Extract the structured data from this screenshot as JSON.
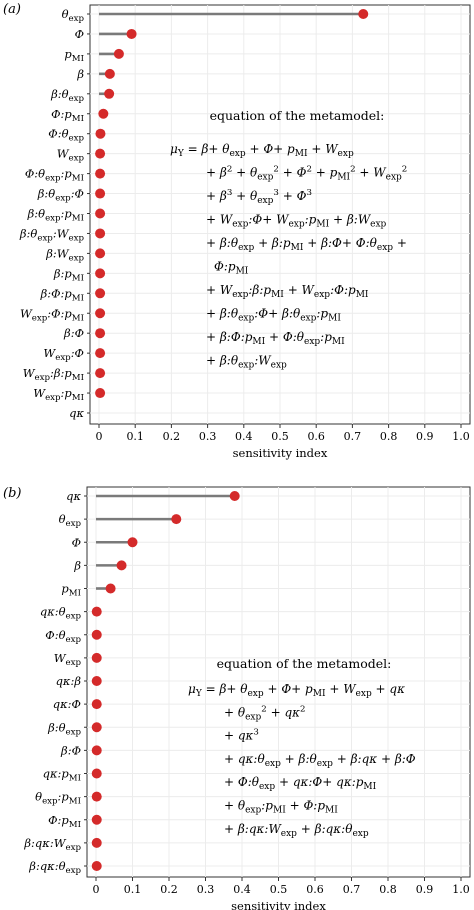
{
  "chart_data": [
    {
      "type": "lollipop",
      "panel_label": "(a)",
      "xlabel": "sensitivity index",
      "xlim": [
        0,
        1.0
      ],
      "xticks": [
        "0",
        "0.1",
        "0.2",
        "0.3",
        "0.4",
        "0.5",
        "0.6",
        "0.7",
        "0.8",
        "0.9",
        "1.0"
      ],
      "grid": true,
      "colors": {
        "stem": "#7a7a7a",
        "point": "#d42a2a"
      },
      "categories": [
        "θexp",
        "Φ",
        "pMI",
        "β",
        "β:θexp",
        "Φ:pMI",
        "Φ:θexp",
        "Wexp",
        "Φ:θexp:pMI",
        "β:θexp:Φ",
        "β:θexp:pMI",
        "β:θexp:Wexp",
        "β:Wexp",
        "β:pMI",
        "β:Φ:pMI",
        "Wexp:Φ:pMI",
        "β:Φ",
        "Wexp:Φ",
        "Wexp:β:pMI",
        "Wexp:pMI",
        "qκ"
      ],
      "values": [
        0.73,
        0.09,
        0.055,
        0.03,
        0.028,
        0.012,
        0.004,
        0.003,
        0.003,
        0.003,
        0.003,
        0.003,
        0.003,
        0.003,
        0.003,
        0.003,
        0.003,
        0.003,
        0.003,
        0.003,
        null
      ],
      "annotation": {
        "title": "equation of the metamodel:",
        "lines": [
          "μY = β+ θexp + Φ+ pMI + Wexp",
          "+ β2 + θexp2 + Φ2 + pMI2 + Wexp2",
          "+ β3 + θexp3 + Φ3",
          "+ Wexp:Φ+ Wexp:pMI + β:Wexp",
          "+ β:θexp + β:pMI + β:Φ+ Φ:θexp +",
          "Φ:pMI",
          "+ Wexp:β:pMI + Wexp:Φ:pMI",
          "+ β:θexp:Φ+ β:θexp:pMI",
          "+ β:Φ:pMI + Φ:θexp:pMI",
          "+ β:θexp:Wexp"
        ]
      }
    },
    {
      "type": "lollipop",
      "panel_label": "(b)",
      "xlabel": "sensitivity index",
      "xlim": [
        0,
        1.0
      ],
      "xticks": [
        "0",
        "0.1",
        "0.2",
        "0.3",
        "0.4",
        "0.5",
        "0.6",
        "0.7",
        "0.8",
        "0.9",
        "1.0"
      ],
      "grid": true,
      "colors": {
        "stem": "#7a7a7a",
        "point": "#d42a2a"
      },
      "categories": [
        "qκ",
        "θexp",
        "Φ",
        "β",
        "pMI",
        "qκ:θexp",
        "Φ:θexp",
        "Wexp",
        "qκ:β",
        "qκ:Φ",
        "β:θexp",
        "β:Φ",
        "qκ:pMI",
        "θexp:pMI",
        "Φ:pMI",
        "β:qκ:Wexp",
        "β:qκ:θexp"
      ],
      "values": [
        0.38,
        0.22,
        0.1,
        0.07,
        0.04,
        0.002,
        0.002,
        0.002,
        0.002,
        0.002,
        0.002,
        0.002,
        0.002,
        0.002,
        0.002,
        0.002,
        0.002
      ],
      "annotation": {
        "title": "equation of the metamodel:",
        "lines": [
          "μY = β+ θexp + Φ+ pMI + Wexp + qκ",
          "+ θexp2 + qκ2",
          "+ qκ3",
          "+ qκ:θexp + β:θexp + β:qκ + β:Φ",
          "+ Φ:θexp + qκ:Φ+ qκ:pMI",
          "+ θexp:pMI + Φ:pMI",
          "+ β:qκ:Wexp + β:qκ:θexp"
        ]
      }
    }
  ]
}
